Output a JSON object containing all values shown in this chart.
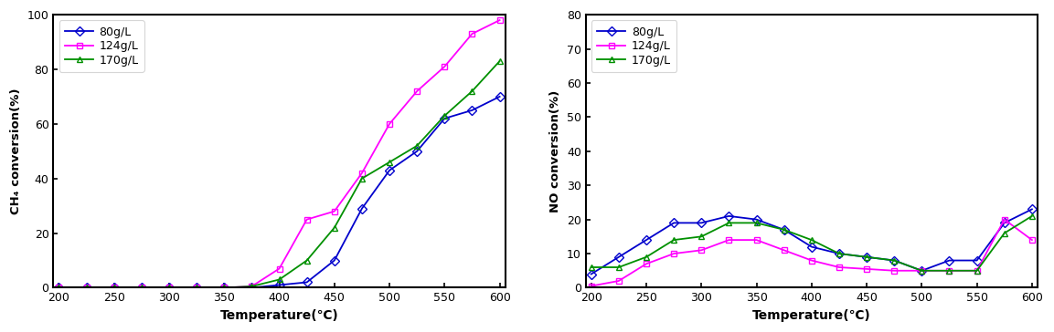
{
  "ch4": {
    "temp": [
      200,
      225,
      250,
      275,
      300,
      325,
      350,
      375,
      400,
      425,
      450,
      475,
      500,
      525,
      550,
      575,
      600
    ],
    "80g": [
      0,
      0,
      0,
      0,
      0,
      0,
      0,
      0,
      1,
      2,
      10,
      29,
      43,
      50,
      62,
      65,
      70
    ],
    "124g": [
      0,
      0,
      0,
      0,
      0,
      0,
      0,
      0.5,
      7,
      25,
      28,
      42,
      60,
      72,
      81,
      93,
      98
    ],
    "170g": [
      0,
      0,
      0,
      0,
      0,
      0,
      0,
      0.5,
      3,
      10,
      22,
      40,
      46,
      52,
      63,
      72,
      83
    ]
  },
  "no": {
    "temp": [
      200,
      225,
      250,
      275,
      300,
      325,
      350,
      375,
      400,
      425,
      450,
      475,
      500,
      525,
      550,
      575,
      600
    ],
    "80g": [
      4,
      9,
      14,
      19,
      19,
      21,
      20,
      17,
      12,
      10,
      9,
      8,
      5,
      8,
      8,
      19,
      23
    ],
    "124g": [
      0.5,
      2,
      7,
      10,
      11,
      14,
      14,
      11,
      8,
      6,
      5.5,
      5,
      5,
      5,
      5,
      20,
      14
    ],
    "170g": [
      6,
      6,
      9,
      14,
      15,
      19,
      19,
      17,
      14,
      10,
      9,
      8,
      5,
      5,
      5,
      16,
      21
    ]
  },
  "colors": {
    "80g": "#0000cc",
    "124g": "#ff00ff",
    "170g": "#009000"
  },
  "ch4_ylabel": "CH₄ conversion(%)",
  "no_ylabel": "NO conversion(%)",
  "xlabel": "Temperature(℃)",
  "ch4_ylim": [
    0,
    100
  ],
  "no_ylim": [
    0,
    80
  ],
  "ch4_yticks": [
    0,
    20,
    40,
    60,
    80,
    100
  ],
  "no_yticks": [
    0,
    10,
    20,
    30,
    40,
    50,
    60,
    70,
    80
  ],
  "xticks": [
    200,
    250,
    300,
    350,
    400,
    450,
    500,
    550,
    600
  ],
  "xlim": [
    195,
    605
  ],
  "legend_labels": [
    "80g/L",
    "124g/L",
    "170g/L"
  ]
}
